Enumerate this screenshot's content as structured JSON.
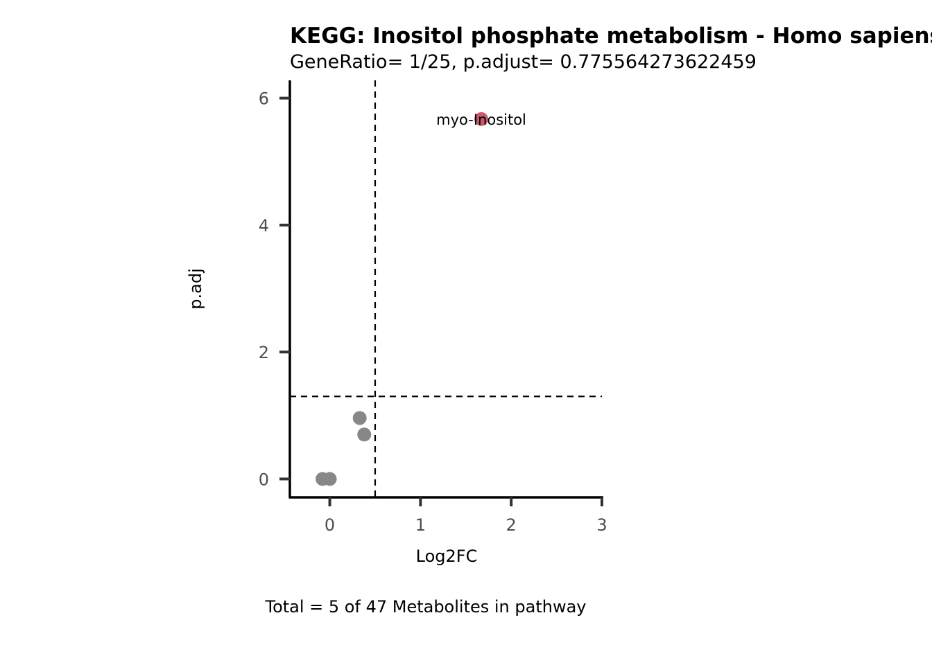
{
  "chart_data": {
    "type": "scatter",
    "title": "KEGG: Inositol phosphate metabolism - Homo sapiens (human)",
    "subtitle": "GeneRatio= 1/25, p.adjust= 0.775564273622459",
    "xlabel": "Log2FC",
    "ylabel": "p.adj",
    "caption": "Total = 5 of 47 Metabolites in pathway",
    "xlim": [
      -0.44,
      3.0
    ],
    "ylim": [
      -0.29,
      6.28
    ],
    "xticks": [
      0,
      1,
      2,
      3
    ],
    "yticks": [
      0,
      2,
      4,
      6
    ],
    "x_threshold": 0.5,
    "y_threshold": 1.301,
    "points": [
      {
        "x": 1.67,
        "y": 5.67,
        "label": "myo-Inositol",
        "significant": true
      },
      {
        "x": 0.33,
        "y": 0.96,
        "label": "",
        "significant": false
      },
      {
        "x": 0.38,
        "y": 0.7,
        "label": "",
        "significant": false
      },
      {
        "x": -0.08,
        "y": 0.0,
        "label": "",
        "significant": false
      },
      {
        "x": 0.0,
        "y": 0.0,
        "label": "",
        "significant": false
      }
    ],
    "colors": {
      "significant": "#c9596f",
      "not_significant": "#878787",
      "axis": "#000000",
      "tick": "#333333"
    },
    "grid": false,
    "legend": "none"
  }
}
